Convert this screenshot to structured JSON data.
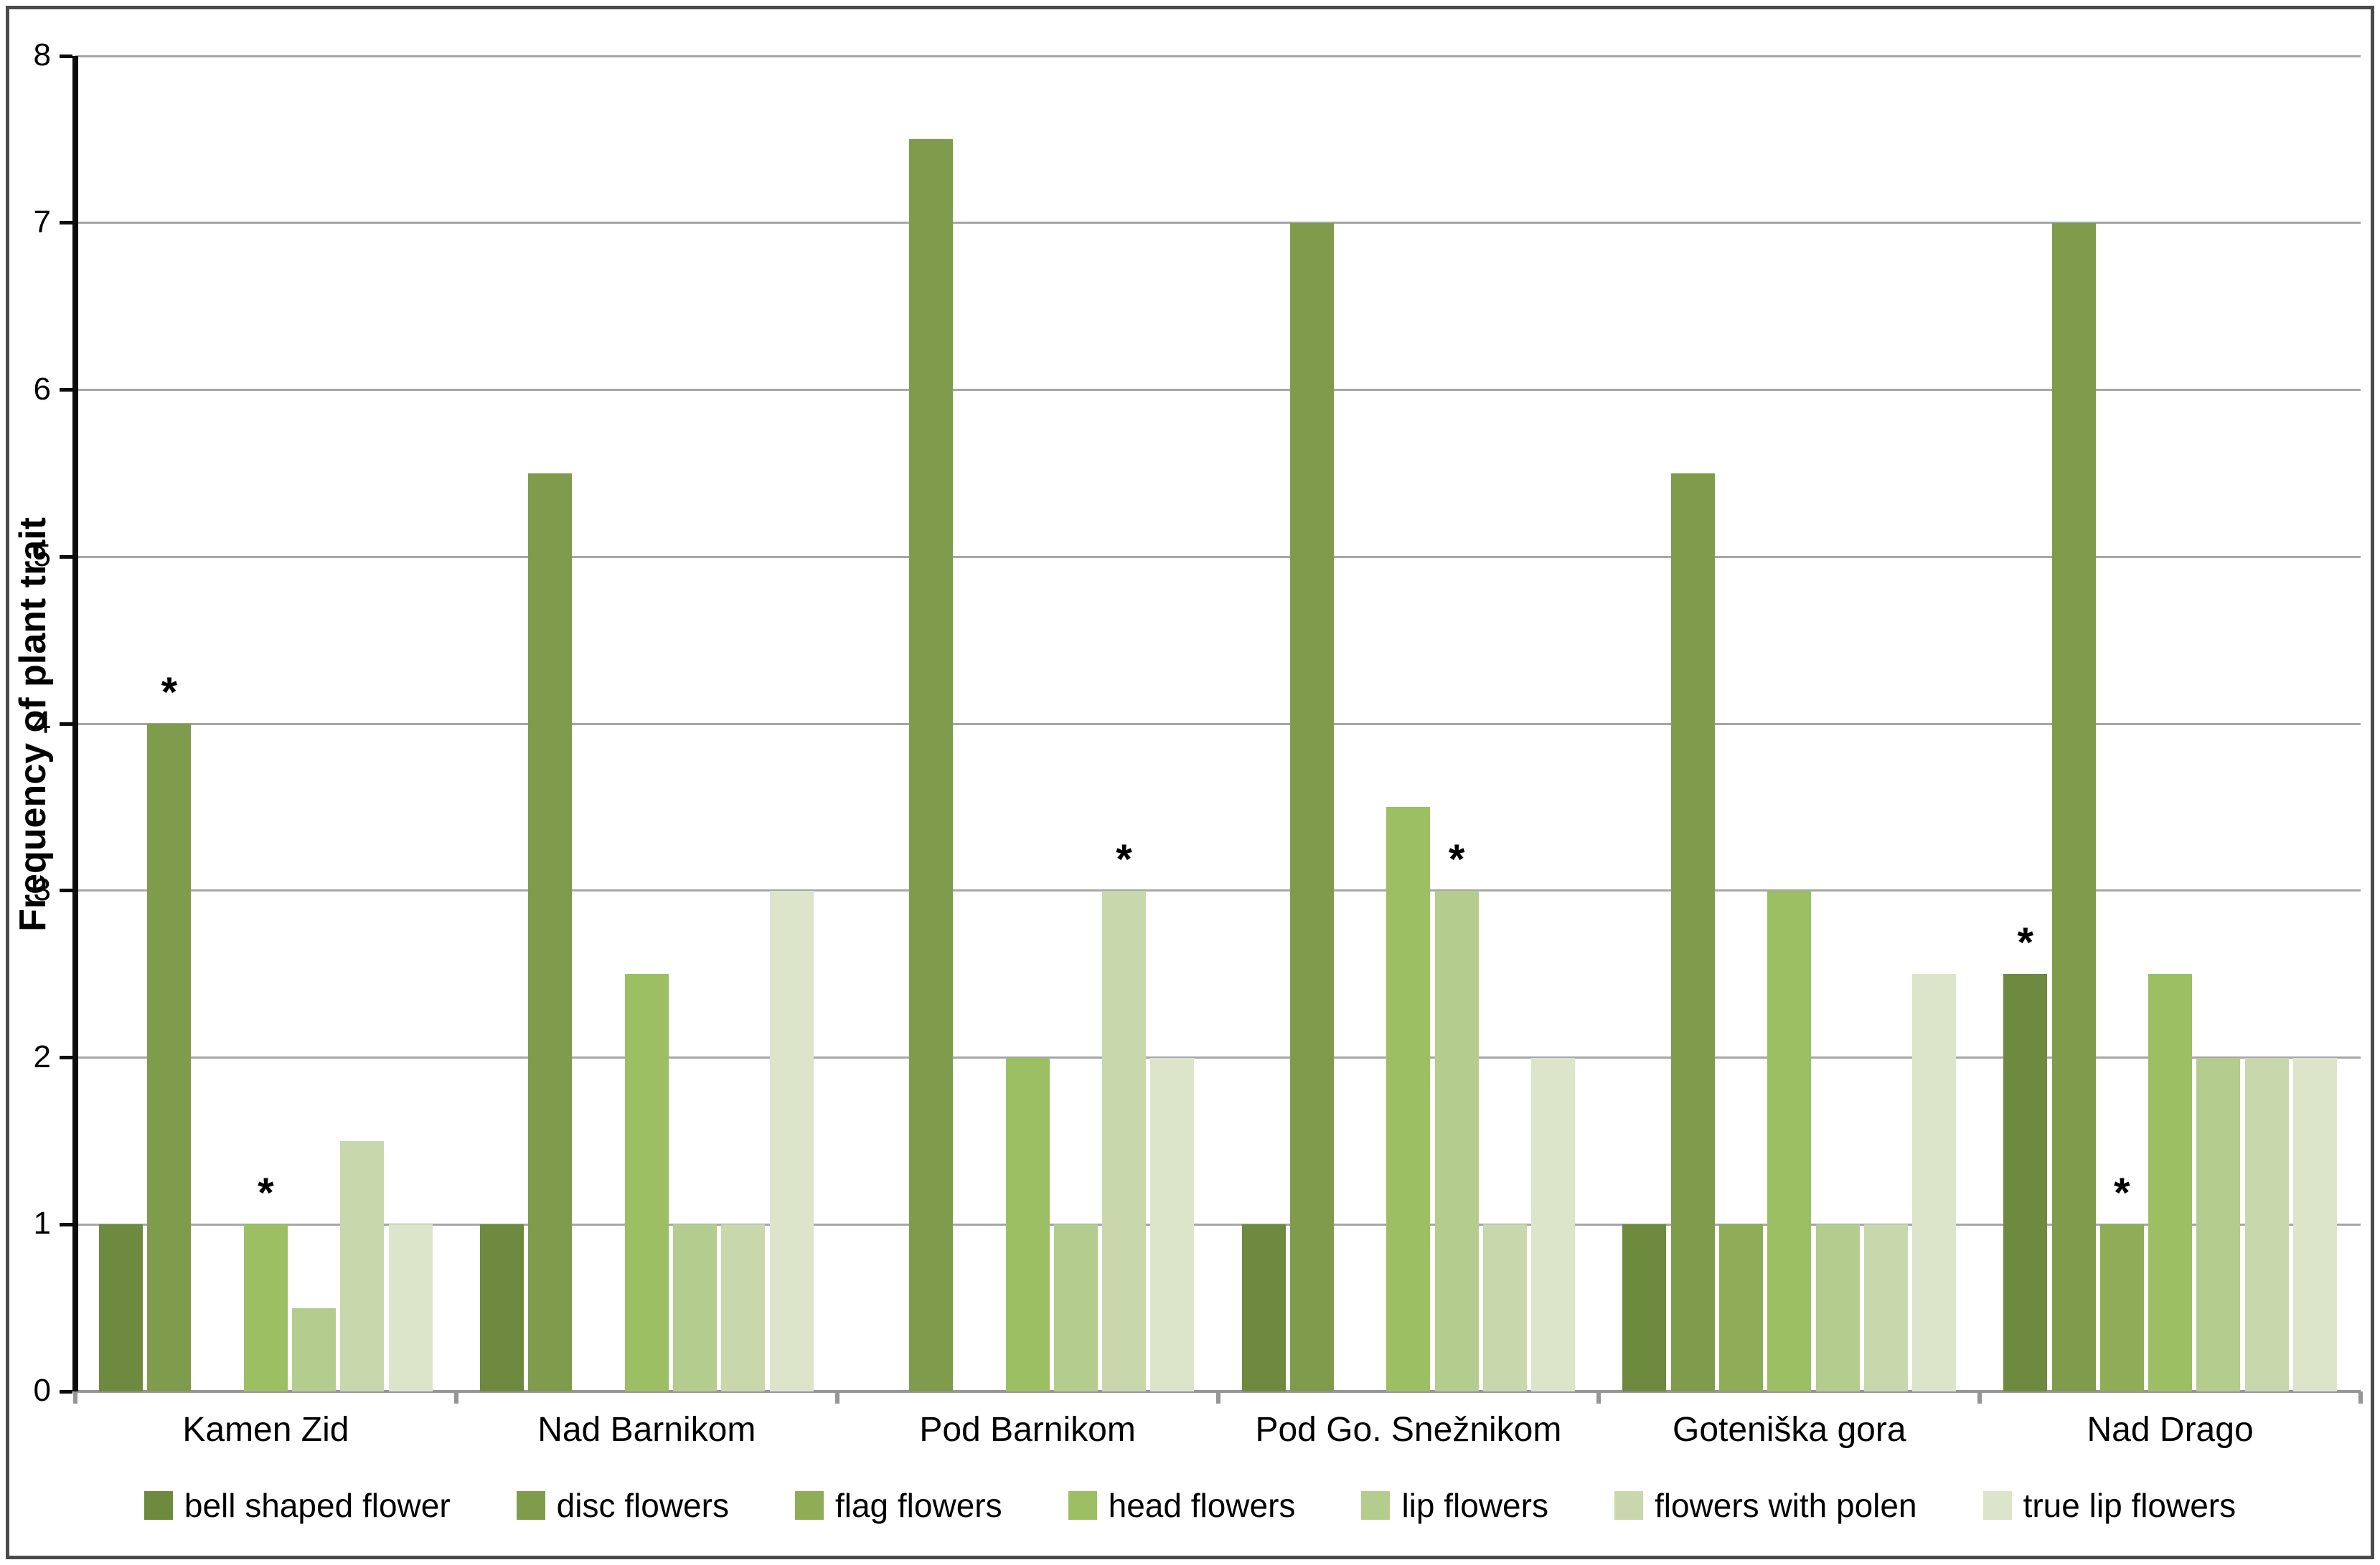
{
  "chart_data": {
    "type": "bar",
    "title": "",
    "xlabel": "",
    "ylabel": "Frequency of plant trait",
    "ylim": [
      0,
      8
    ],
    "y_ticks": [
      0,
      1,
      2,
      3,
      4,
      5,
      6,
      7,
      8
    ],
    "grid": true,
    "legend_position": "bottom",
    "annotation_symbol": "*",
    "categories": [
      "Kamen Zid",
      "Nad Barnikom",
      "Pod Barnikom",
      "Pod Go. Snežnikom",
      "Goteniška gora",
      "Nad Drago"
    ],
    "series": [
      {
        "name": "bell shaped flower",
        "color": "#6d8a3e",
        "values": [
          1,
          1,
          0,
          1,
          1,
          2.5
        ],
        "asterisk_at": [
          5
        ]
      },
      {
        "name": "disc flowers",
        "color": "#7f9c4d",
        "values": [
          4,
          5.5,
          7.5,
          7,
          5.5,
          7
        ],
        "asterisk_at": [
          0
        ]
      },
      {
        "name": "flag flowers",
        "color": "#8fad57",
        "values": [
          0,
          0,
          0,
          0,
          1,
          1
        ],
        "asterisk_at": [
          5
        ]
      },
      {
        "name": "head flowers",
        "color": "#9cbf63",
        "values": [
          1,
          2.5,
          2,
          3.5,
          3,
          2.5
        ],
        "asterisk_at": [
          0
        ]
      },
      {
        "name": "lip flowers",
        "color": "#b5cc8f",
        "values": [
          0.5,
          1,
          1,
          3,
          1,
          2
        ],
        "asterisk_at": [
          3
        ]
      },
      {
        "name": "flowers with polen",
        "color": "#c8d8ac",
        "values": [
          1.5,
          1,
          3,
          1,
          1,
          2
        ],
        "asterisk_at": [
          2
        ]
      },
      {
        "name": "true lip flowers",
        "color": "#dce5ca",
        "values": [
          1,
          3,
          2,
          2,
          2.5,
          2
        ],
        "asterisk_at": []
      }
    ],
    "axis_colors": {
      "gridline": "#a6a6a6",
      "baseline": "#969696",
      "y_axis": "#0d0d0d",
      "frame": "#4c4c4c"
    }
  }
}
